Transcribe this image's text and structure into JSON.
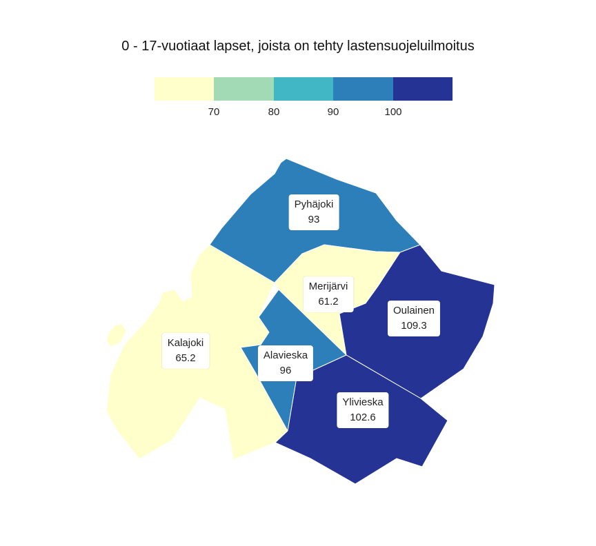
{
  "title": "0 - 17-vuotiaat lapset, joista on tehty lastensuojeluilmoitus",
  "legend": {
    "colors": [
      "#ffffcc",
      "#a1dab4",
      "#41b6c4",
      "#2c7fb8",
      "#253494"
    ],
    "ticks": [
      "70",
      "80",
      "90",
      "100"
    ]
  },
  "regions": [
    {
      "name": "Pyhäjoki",
      "value": "93",
      "color": "#2c7fb8"
    },
    {
      "name": "Merijärvi",
      "value": "61.2",
      "color": "#ffffcc"
    },
    {
      "name": "Oulainen",
      "value": "109.3",
      "color": "#253494"
    },
    {
      "name": "Kalajoki",
      "value": "65.2",
      "color": "#ffffcc"
    },
    {
      "name": "Alavieska",
      "value": "96",
      "color": "#2c7fb8"
    },
    {
      "name": "Ylivieska",
      "value": "102.6",
      "color": "#253494"
    }
  ]
}
